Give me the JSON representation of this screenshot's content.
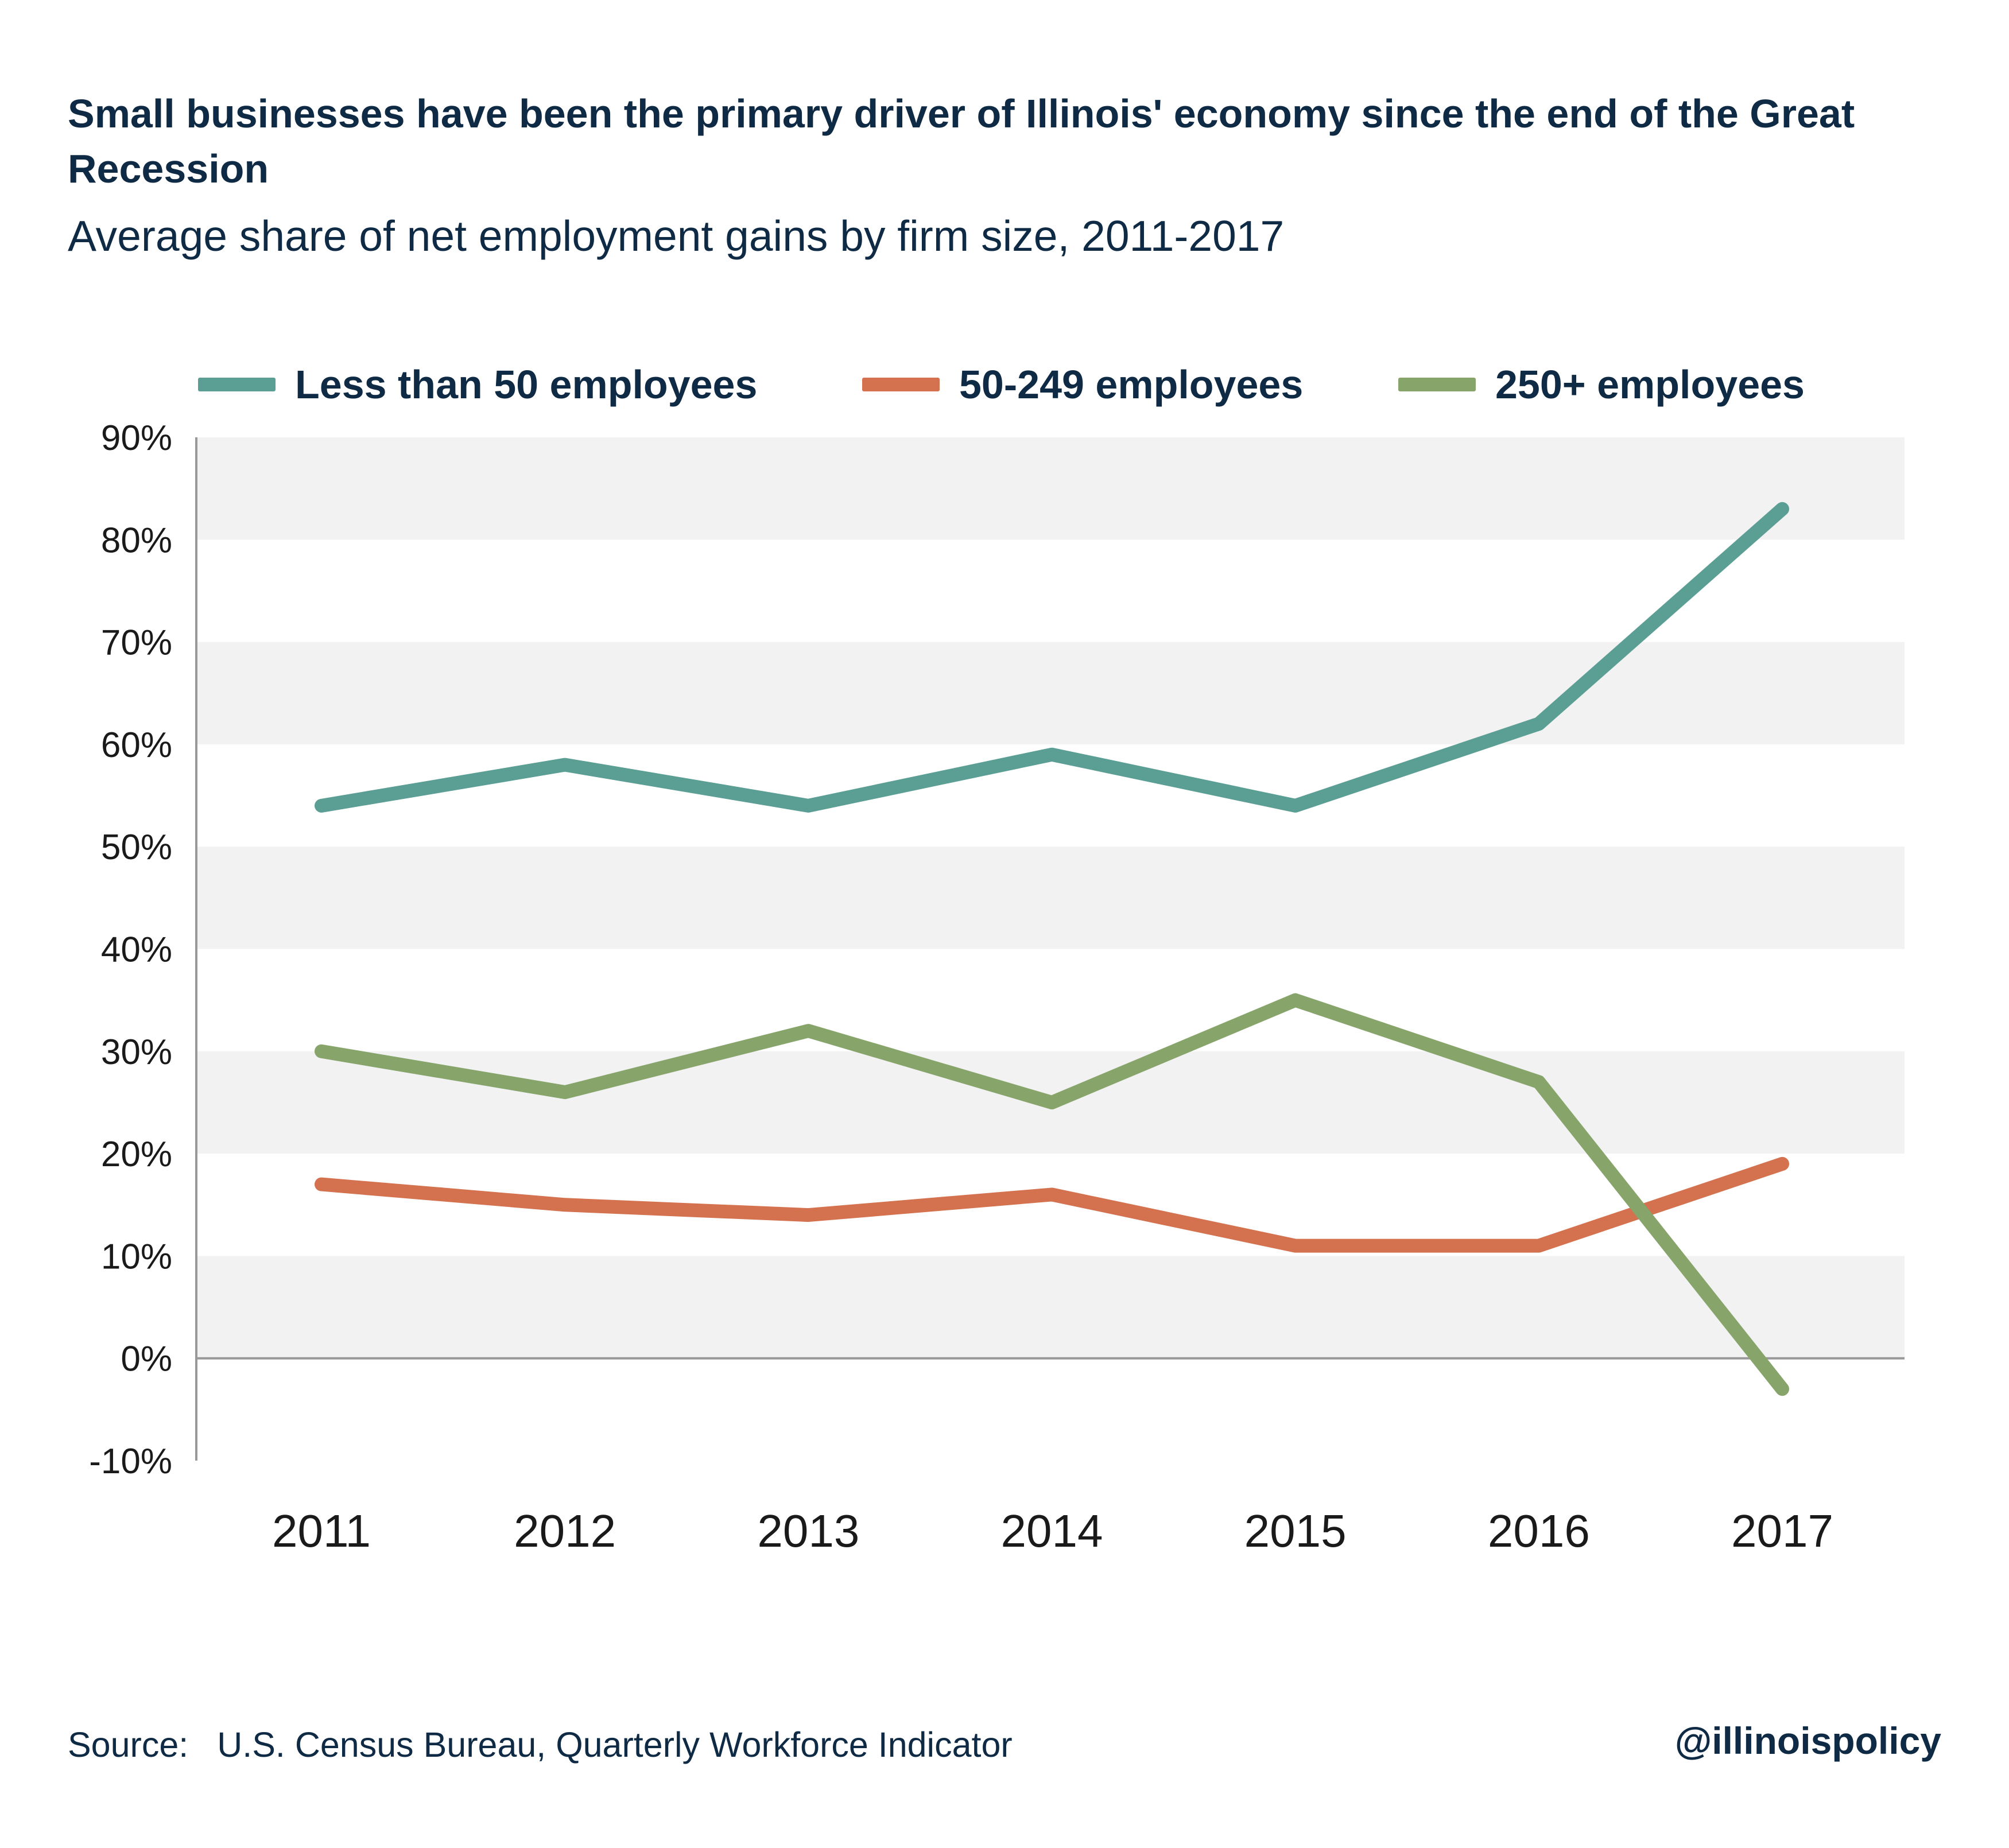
{
  "title": "Small businesses have been the primary driver of Illinois' economy since the end of the Great Recession",
  "subtitle": "Average share of net employment gains by firm size, 2011-2017",
  "source_prefix": "Source:",
  "source_text": "U.S. Census Bureau, Quarterly Workforce Indicator",
  "handle": "@illinoispolicy",
  "colors": {
    "less_than_50": "#5b9e94",
    "50_249": "#d4714f",
    "250_plus": "#87a46a",
    "band": "#f2f2f2",
    "axis": "#999999"
  },
  "chart_data": {
    "type": "line",
    "x": [
      "2011",
      "2012",
      "2013",
      "2014",
      "2015",
      "2016",
      "2017"
    ],
    "series": [
      {
        "name": "Less than 50 employees",
        "color": "#5b9e94",
        "values": [
          54,
          58,
          54,
          59,
          54,
          62,
          83
        ]
      },
      {
        "name": "50-249 employees",
        "color": "#d4714f",
        "values": [
          17,
          15,
          14,
          16,
          11,
          11,
          19
        ]
      },
      {
        "name": "250+ employees",
        "color": "#87a46a",
        "values": [
          30,
          26,
          32,
          25,
          35,
          27,
          -3
        ]
      }
    ],
    "ylim": [
      -10,
      90
    ],
    "yticks": [
      -10,
      0,
      10,
      20,
      30,
      40,
      50,
      60,
      70,
      80,
      90
    ],
    "ytick_labels": [
      "-10%",
      "0%",
      "10%",
      "20%",
      "30%",
      "40%",
      "50%",
      "60%",
      "70%",
      "80%",
      "90%"
    ],
    "xlabel": "",
    "ylabel": "",
    "grid": "alternating horizontal bands",
    "legend_position": "top"
  }
}
